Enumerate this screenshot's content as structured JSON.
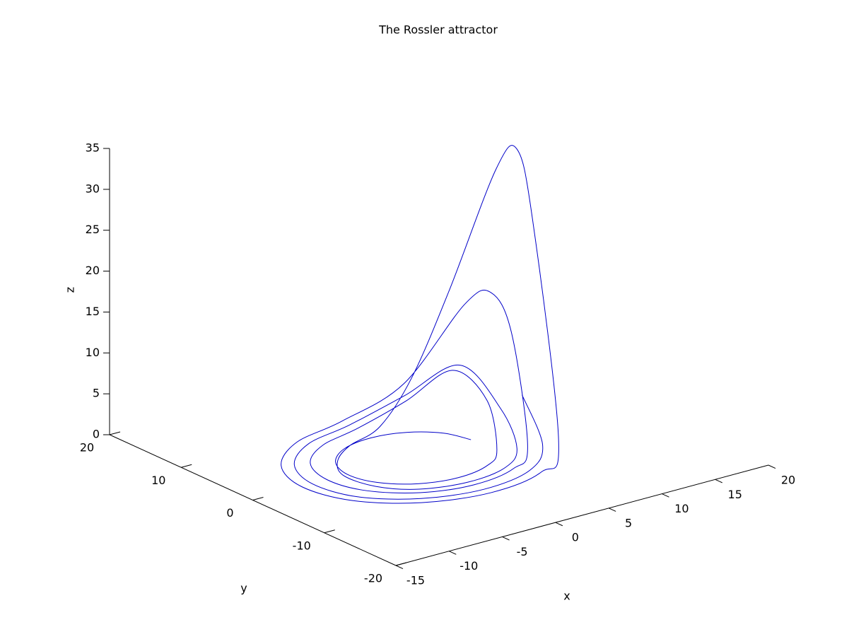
{
  "chart_data": {
    "type": "line3d",
    "title": "The Rossler attractor",
    "xlabel": "x",
    "ylabel": "y",
    "zlabel": "z",
    "xlim": [
      -15,
      20
    ],
    "ylim": [
      -20,
      20
    ],
    "zlim": [
      0,
      35
    ],
    "xticks": [
      -15,
      -10,
      -5,
      0,
      5,
      10,
      15,
      20
    ],
    "yticks": [
      -20,
      -10,
      0,
      10,
      20
    ],
    "zticks": [
      0,
      5,
      10,
      15,
      20,
      25,
      30,
      35
    ],
    "series": [
      {
        "color": "#0000c8",
        "x": [
          5.5,
          4.85,
          2.85,
          0,
          -2.95,
          -5.2,
          -6.1,
          -5.37,
          -3.15,
          0,
          3.25,
          5.72,
          7.0,
          6.2,
          3.7,
          0,
          -3.9,
          -6.9,
          -8.0,
          -7.1,
          -4.2,
          0,
          4.4,
          7.8,
          9.3,
          9.0,
          8.1,
          4.8,
          0,
          -5.0,
          -8.9,
          -10.4,
          -9.2,
          -5.4,
          0,
          5.6,
          9.9,
          11.3,
          11.1,
          10.4,
          8.0,
          5.0,
          1.0,
          -2.5,
          -5.0,
          -6.5,
          -6.0,
          -3.8,
          0,
          4.0,
          7.0,
          8.3,
          7.3,
          4.3,
          0,
          -4.5,
          -8.0,
          -9.4,
          -8.4,
          -4.9,
          0,
          5.1,
          8.8,
          10.3
        ],
        "y": [
          0,
          2.8,
          4.94,
          5.8,
          5.11,
          3.0,
          0,
          -3.1,
          -5.46,
          -6.4,
          -5.63,
          -3.3,
          0,
          3.6,
          6.4,
          7.6,
          6.75,
          4.0,
          0,
          -4.1,
          -7.3,
          -8.6,
          -7.6,
          -4.5,
          0,
          2.4,
          4.7,
          8.3,
          9.8,
          8.7,
          5.1,
          0,
          -5.3,
          -9.3,
          -11.0,
          -9.7,
          -5.7,
          0,
          1.9,
          3.8,
          6.7,
          7.5,
          6.0,
          5.0,
          3.0,
          0,
          -3.8,
          -6.6,
          -7.8,
          -7.0,
          -4.2,
          0,
          4.2,
          7.5,
          8.8,
          7.8,
          4.6,
          0,
          -4.9,
          -8.5,
          -10.0,
          -8.8,
          -5.1,
          0
        ],
        "z": [
          0.2,
          0.1,
          0.05,
          0.03,
          0.02,
          0.02,
          0.02,
          0.02,
          0.03,
          0.04,
          0.08,
          0.2,
          4.5,
          7,
          3,
          0.5,
          0.1,
          0.05,
          0.03,
          0.03,
          0.04,
          0.05,
          0.1,
          0.5,
          12,
          16,
          14,
          4,
          0.5,
          0.1,
          0.05,
          0.03,
          0.03,
          0.04,
          0.05,
          0.1,
          1,
          25,
          33,
          30,
          15,
          5,
          1,
          0.3,
          0.1,
          0.05,
          0.04,
          0.05,
          0.06,
          0.1,
          0.3,
          3,
          7,
          3,
          0.4,
          0.1,
          0.05,
          0.03,
          0.04,
          0.05,
          0.06,
          0.1,
          0.5,
          4
        ]
      }
    ]
  }
}
